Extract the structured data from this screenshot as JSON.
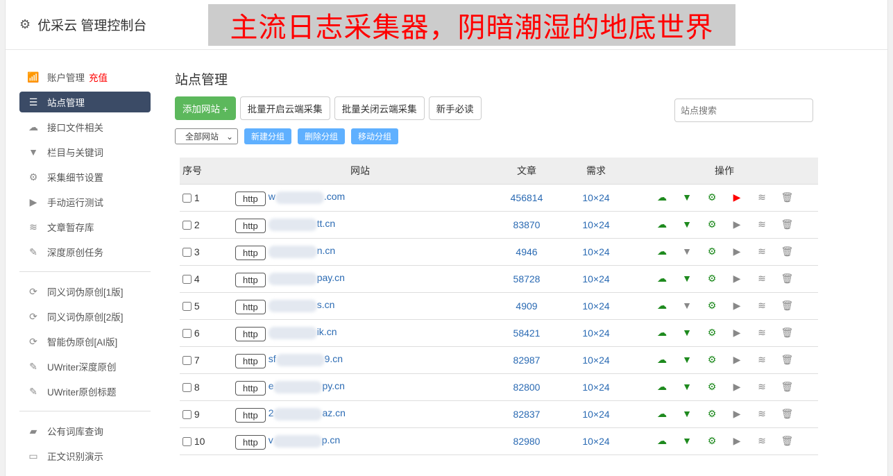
{
  "header": {
    "title": "优采云 管理控制台",
    "icon": "gear-icon"
  },
  "sidebar": {
    "group1": [
      {
        "label": "账户管理",
        "extra": "充值",
        "icon": "bar-chart-icon"
      },
      {
        "label": "站点管理",
        "icon": "list-icon",
        "active": true
      },
      {
        "label": "接口文件相关",
        "icon": "cloud-upload-icon"
      },
      {
        "label": "栏目与关键词",
        "icon": "filter-icon"
      },
      {
        "label": "采集细节设置",
        "icon": "gears-icon"
      },
      {
        "label": "手动运行测试",
        "icon": "play-icon"
      },
      {
        "label": "文章暂存库",
        "icon": "database-icon"
      },
      {
        "label": "深度原创任务",
        "icon": "edit-icon"
      }
    ],
    "group2": [
      {
        "label": "同义词伪原创[1版]",
        "icon": "refresh-icon"
      },
      {
        "label": "同义词伪原创[2版]",
        "icon": "refresh-icon"
      },
      {
        "label": "智能伪原创[AI版]",
        "icon": "refresh-icon"
      },
      {
        "label": "UWriter深度原创",
        "icon": "edit-icon"
      },
      {
        "label": "UWriter原创标题",
        "icon": "edit-icon"
      }
    ],
    "group3": [
      {
        "label": "公有词库查询",
        "icon": "book-icon"
      },
      {
        "label": "正文识别演示",
        "icon": "monitor-icon"
      }
    ]
  },
  "main": {
    "title": "站点管理",
    "buttons": {
      "add": "添加网站 +",
      "enable": "批量开启云端采集",
      "disable": "批量关闭云端采集",
      "guide": "新手必读"
    },
    "search_placeholder": "站点搜索",
    "group_select": "全部网站",
    "group_buttons": {
      "new": "新建分组",
      "delete": "删除分组",
      "move": "移动分组"
    },
    "columns": [
      "序号",
      "网站",
      "文章",
      "需求",
      "操作"
    ],
    "rows": [
      {
        "id": "1",
        "proto": "http",
        "pre": "w",
        "suf": ".com",
        "articles": "456814",
        "demand": "10×24",
        "filter_active": true,
        "play_active": true
      },
      {
        "id": "2",
        "proto": "http",
        "pre": "",
        "suf": "tt.cn",
        "articles": "83870",
        "demand": "10×24",
        "filter_active": true,
        "play_active": false
      },
      {
        "id": "3",
        "proto": "http",
        "pre": "",
        "suf": "n.cn",
        "articles": "4946",
        "demand": "10×24",
        "filter_active": false,
        "play_active": false
      },
      {
        "id": "4",
        "proto": "http",
        "pre": "",
        "suf": "pay.cn",
        "articles": "58728",
        "demand": "10×24",
        "filter_active": true,
        "play_active": false
      },
      {
        "id": "5",
        "proto": "http",
        "pre": "",
        "suf": "s.cn",
        "articles": "4909",
        "demand": "10×24",
        "filter_active": false,
        "play_active": false
      },
      {
        "id": "6",
        "proto": "http",
        "pre": "",
        "suf": "ik.cn",
        "articles": "58421",
        "demand": "10×24",
        "filter_active": true,
        "play_active": false
      },
      {
        "id": "7",
        "proto": "http",
        "pre": "sf",
        "suf": "9.cn",
        "articles": "82987",
        "demand": "10×24",
        "filter_active": true,
        "play_active": false
      },
      {
        "id": "8",
        "proto": "http",
        "pre": "e",
        "suf": "py.cn",
        "articles": "82800",
        "demand": "10×24",
        "filter_active": true,
        "play_active": false
      },
      {
        "id": "9",
        "proto": "http",
        "pre": "2",
        "suf": "az.cn",
        "articles": "82837",
        "demand": "10×24",
        "filter_active": true,
        "play_active": false
      },
      {
        "id": "10",
        "proto": "http",
        "pre": "v",
        "suf": "p.cn",
        "articles": "82980",
        "demand": "10×24",
        "filter_active": true,
        "play_active": false
      }
    ]
  },
  "overlay": {
    "text": "主流日志采集器，阴暗潮湿的地底世界"
  },
  "colors": {
    "active_nav": "#3b4b66",
    "green": "#5cb85c",
    "blue_btn": "#5fb0ff",
    "link": "#2a6ab3",
    "icon_green": "#1e8a1e",
    "play_red": "#ff0000"
  }
}
